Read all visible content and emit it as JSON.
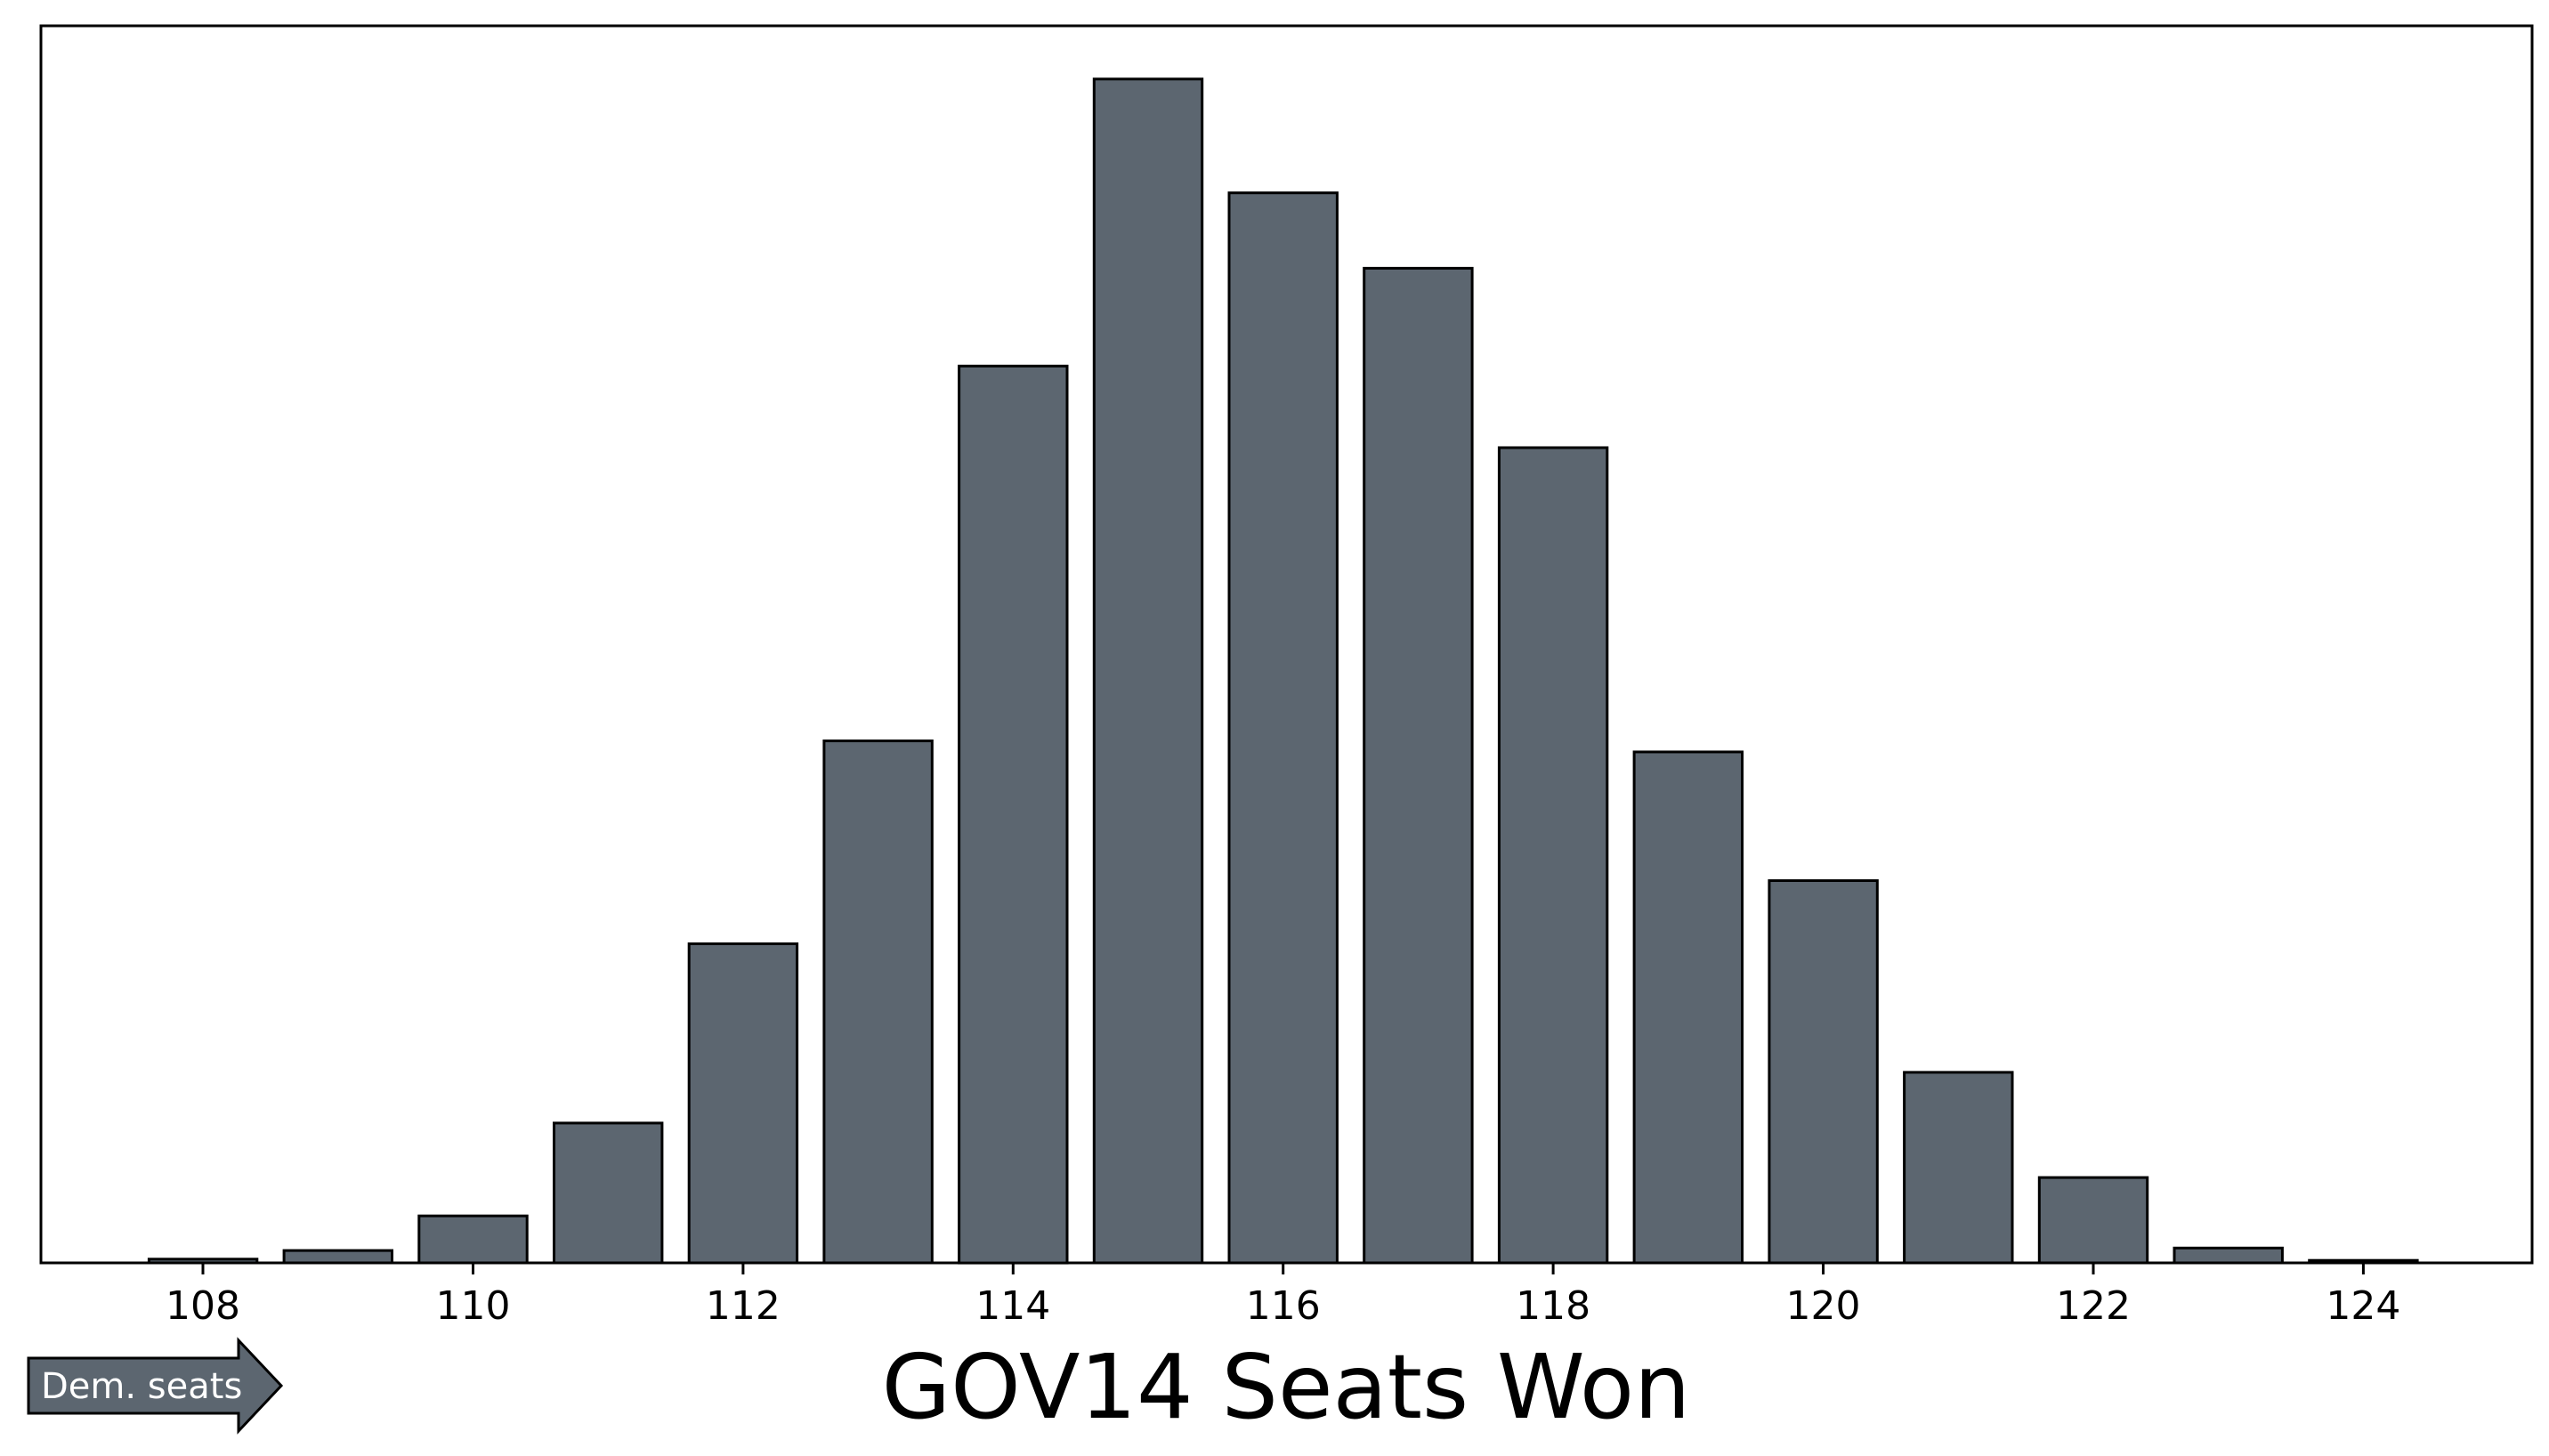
{
  "chart_data": {
    "type": "bar",
    "title": "",
    "xlabel": "GOV14 Seats Won",
    "ylabel": "",
    "categories": [
      108,
      109,
      110,
      111,
      112,
      113,
      114,
      115,
      116,
      117,
      118,
      119,
      120,
      121,
      122,
      123,
      124
    ],
    "values": [
      0.3,
      1.0,
      3.8,
      11.3,
      25.8,
      42.2,
      72.5,
      95.7,
      86.5,
      80.4,
      65.9,
      41.3,
      30.9,
      15.4,
      6.9,
      1.2,
      0.2
    ],
    "x_ticks": [
      108,
      110,
      112,
      114,
      116,
      118,
      120,
      122,
      124
    ],
    "xlim": [
      106.8,
      125.25
    ],
    "ylim": [
      0,
      100
    ],
    "y_ticks_shown": false,
    "grid": false,
    "bar_color": "#5c6670",
    "edge_color": "#000000"
  },
  "annotation": {
    "arrow_label": "Dem. seats",
    "arrow_color": "#5c6670"
  }
}
